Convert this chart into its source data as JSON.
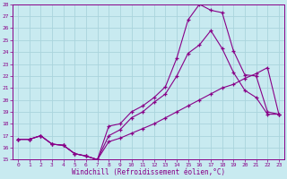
{
  "xlabel": "Windchill (Refroidissement éolien,°C)",
  "background_color": "#c8eaf0",
  "grid_color": "#aad4dc",
  "line_color": "#880088",
  "xlim": [
    -0.5,
    23.5
  ],
  "ylim": [
    15,
    28
  ],
  "xticks": [
    0,
    1,
    2,
    3,
    4,
    5,
    6,
    7,
    8,
    9,
    10,
    11,
    12,
    13,
    14,
    15,
    16,
    17,
    18,
    19,
    20,
    21,
    22,
    23
  ],
  "yticks": [
    15,
    16,
    17,
    18,
    19,
    20,
    21,
    22,
    23,
    24,
    25,
    26,
    27,
    28
  ],
  "line1_x": [
    0,
    1,
    2,
    3,
    4,
    5,
    6,
    7,
    8,
    9,
    10,
    11,
    12,
    13,
    14,
    15,
    16,
    17,
    18,
    19,
    20,
    21,
    22,
    23
  ],
  "line1_y": [
    16.7,
    16.7,
    17.0,
    16.3,
    16.2,
    15.5,
    15.3,
    15.0,
    17.8,
    18.0,
    19.0,
    19.5,
    20.2,
    21.1,
    23.5,
    26.7,
    28.0,
    27.5,
    27.3,
    24.1,
    22.1,
    22.0,
    19.0,
    18.8
  ],
  "line2_x": [
    0,
    1,
    2,
    3,
    4,
    5,
    6,
    7,
    8,
    9,
    10,
    11,
    12,
    13,
    14,
    15,
    16,
    17,
    18,
    19,
    20,
    21,
    22,
    23
  ],
  "line2_y": [
    16.7,
    16.7,
    17.0,
    16.3,
    16.2,
    15.5,
    15.3,
    15.0,
    16.5,
    16.8,
    17.2,
    17.6,
    18.0,
    18.5,
    19.0,
    19.5,
    20.0,
    20.5,
    21.0,
    21.3,
    21.8,
    22.2,
    22.7,
    18.8
  ],
  "line3_x": [
    0,
    1,
    2,
    3,
    4,
    5,
    6,
    7,
    8,
    9,
    10,
    11,
    12,
    13,
    14,
    15,
    16,
    17,
    18,
    19,
    20,
    21,
    22,
    23
  ],
  "line3_y": [
    16.7,
    16.7,
    17.0,
    16.3,
    16.2,
    15.5,
    15.3,
    15.0,
    17.0,
    17.5,
    18.5,
    19.0,
    19.8,
    20.5,
    22.0,
    23.9,
    24.6,
    25.8,
    24.3,
    22.3,
    20.8,
    20.2,
    18.8,
    18.8
  ]
}
